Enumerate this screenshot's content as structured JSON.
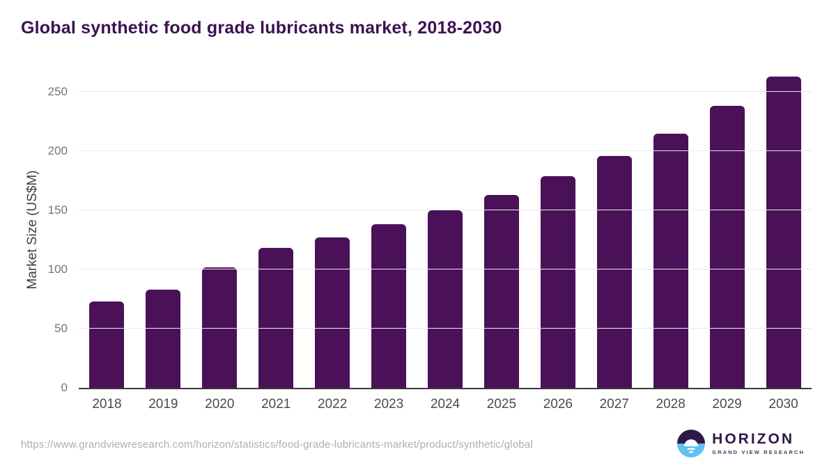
{
  "page": {
    "title": "Global synthetic food grade lubricants market, 2018-2030",
    "source_url": "https://www.grandviewresearch.com/horizon/statistics/food-grade-lubricants-market/product/synthetic/global",
    "logo": {
      "brand": "HORIZON",
      "tagline": "GRAND VIEW RESEARCH"
    }
  },
  "chart_data": {
    "type": "bar",
    "title": "Global synthetic food grade lubricants market, 2018-2030",
    "categories": [
      "2018",
      "2019",
      "2020",
      "2021",
      "2022",
      "2023",
      "2024",
      "2025",
      "2026",
      "2027",
      "2028",
      "2029",
      "2030"
    ],
    "values": [
      73,
      83,
      102,
      118,
      127,
      138,
      150,
      163,
      179,
      196,
      215,
      238,
      263
    ],
    "xlabel": "",
    "ylabel": "Market Size (US$M)",
    "yticks": [
      0,
      50,
      100,
      150,
      200,
      250
    ],
    "ylim": [
      0,
      270
    ],
    "grid": "horizontal",
    "legend_position": "none",
    "bar_color": "#4a1158"
  },
  "colors": {
    "bar": "#4a1158",
    "title": "#3d1152",
    "axis_line": "#393939",
    "gridline": "#e9e9e9",
    "y_tick_label": "#757575",
    "x_tick_label": "#4a4a4a",
    "source": "#aeaeae",
    "logo_dark": "#2e1a47",
    "logo_blue": "#5ec1ef",
    "logo_sun": "#ffffff"
  }
}
